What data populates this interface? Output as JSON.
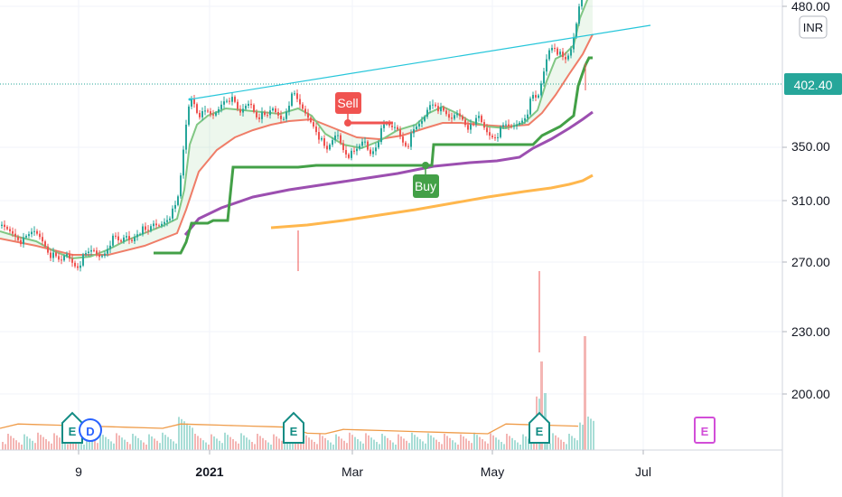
{
  "currency": "INR",
  "last_price": "402.40",
  "chart_data": {
    "type": "candlestick",
    "y_ticks": [
      "480.00",
      "350.00",
      "310.00",
      "270.00",
      "230.00",
      "200.00"
    ],
    "x_ticks": [
      {
        "label": "9",
        "bold": false
      },
      {
        "label": "2021",
        "bold": true
      },
      {
        "label": "Mar",
        "bold": false
      },
      {
        "label": "May",
        "bold": false
      },
      {
        "label": "Jul",
        "bold": false
      }
    ],
    "price_points": [
      [
        0,
        250
      ],
      [
        6,
        247
      ],
      [
        12,
        244
      ],
      [
        18,
        239
      ],
      [
        24,
        232
      ],
      [
        30,
        237
      ],
      [
        36,
        244
      ],
      [
        42,
        240
      ],
      [
        48,
        232
      ],
      [
        54,
        220
      ],
      [
        60,
        214
      ],
      [
        66,
        208
      ],
      [
        72,
        220
      ],
      [
        78,
        212
      ],
      [
        84,
        206
      ],
      [
        90,
        213
      ],
      [
        96,
        218
      ],
      [
        102,
        223
      ],
      [
        108,
        216
      ],
      [
        114,
        220
      ],
      [
        120,
        232
      ],
      [
        126,
        236
      ],
      [
        132,
        229
      ],
      [
        138,
        240
      ],
      [
        144,
        233
      ],
      [
        150,
        244
      ],
      [
        156,
        246
      ],
      [
        162,
        240
      ],
      [
        168,
        252
      ],
      [
        174,
        250
      ],
      [
        180,
        256
      ],
      [
        186,
        262
      ],
      [
        192,
        266
      ],
      [
        196,
        280
      ],
      [
        200,
        312
      ],
      [
        204,
        355
      ],
      [
        208,
        383
      ],
      [
        212,
        395
      ],
      [
        216,
        380
      ],
      [
        222,
        372
      ],
      [
        228,
        375
      ],
      [
        234,
        370
      ],
      [
        240,
        378
      ],
      [
        246,
        390
      ],
      [
        252,
        393
      ],
      [
        258,
        386
      ],
      [
        264,
        372
      ],
      [
        270,
        382
      ],
      [
        276,
        388
      ],
      [
        282,
        374
      ],
      [
        288,
        372
      ],
      [
        294,
        368
      ],
      [
        300,
        380
      ],
      [
        306,
        374
      ],
      [
        312,
        368
      ],
      [
        318,
        386
      ],
      [
        324,
        395
      ],
      [
        330,
        384
      ],
      [
        336,
        376
      ],
      [
        342,
        368
      ],
      [
        348,
        360
      ],
      [
        354,
        345
      ],
      [
        360,
        330
      ],
      [
        366,
        342
      ],
      [
        372,
        354
      ],
      [
        378,
        338
      ],
      [
        384,
        330
      ],
      [
        390,
        328
      ],
      [
        396,
        335
      ],
      [
        402,
        346
      ],
      [
        408,
        330
      ],
      [
        414,
        338
      ],
      [
        420,
        352
      ],
      [
        426,
        362
      ],
      [
        432,
        358
      ],
      [
        438,
        360
      ],
      [
        444,
        346
      ],
      [
        450,
        340
      ],
      [
        456,
        352
      ],
      [
        462,
        360
      ],
      [
        468,
        368
      ],
      [
        474,
        385
      ],
      [
        480,
        388
      ],
      [
        486,
        378
      ],
      [
        492,
        372
      ],
      [
        498,
        366
      ],
      [
        504,
        376
      ],
      [
        510,
        372
      ],
      [
        516,
        362
      ],
      [
        522,
        356
      ],
      [
        528,
        372
      ],
      [
        534,
        360
      ],
      [
        540,
        352
      ],
      [
        546,
        350
      ],
      [
        552,
        354
      ],
      [
        558,
        360
      ],
      [
        564,
        358
      ],
      [
        570,
        362
      ],
      [
        576,
        368
      ],
      [
        582,
        375
      ],
      [
        588,
        392
      ],
      [
        594,
        388
      ],
      [
        600,
        416
      ],
      [
        606,
        445
      ],
      [
        612,
        452
      ],
      [
        618,
        440
      ],
      [
        624,
        430
      ],
      [
        630,
        440
      ],
      [
        636,
        468
      ],
      [
        642,
        508
      ],
      [
        646,
        520
      ],
      [
        650,
        530
      ],
      [
        656,
        540
      ]
    ],
    "ema_fast": [
      [
        0,
        244
      ],
      [
        20,
        238
      ],
      [
        40,
        233
      ],
      [
        60,
        222
      ],
      [
        80,
        214
      ],
      [
        100,
        216
      ],
      [
        120,
        224
      ],
      [
        140,
        234
      ],
      [
        160,
        242
      ],
      [
        180,
        250
      ],
      [
        196,
        258
      ],
      [
        204,
        290
      ],
      [
        210,
        340
      ],
      [
        218,
        362
      ],
      [
        230,
        372
      ],
      [
        250,
        380
      ],
      [
        270,
        378
      ],
      [
        290,
        376
      ],
      [
        310,
        374
      ],
      [
        330,
        380
      ],
      [
        345,
        372
      ],
      [
        360,
        352
      ],
      [
        380,
        340
      ],
      [
        400,
        336
      ],
      [
        420,
        344
      ],
      [
        440,
        356
      ],
      [
        460,
        362
      ],
      [
        475,
        375
      ],
      [
        490,
        382
      ],
      [
        505,
        375
      ],
      [
        520,
        366
      ],
      [
        540,
        360
      ],
      [
        560,
        358
      ],
      [
        580,
        364
      ],
      [
        595,
        378
      ],
      [
        605,
        410
      ],
      [
        615,
        435
      ],
      [
        625,
        440
      ],
      [
        635,
        450
      ],
      [
        642,
        480
      ],
      [
        650,
        500
      ],
      [
        656,
        510
      ]
    ],
    "ema_slow": [
      [
        0,
        236
      ],
      [
        40,
        228
      ],
      [
        80,
        218
      ],
      [
        120,
        218
      ],
      [
        160,
        228
      ],
      [
        196,
        242
      ],
      [
        206,
        268
      ],
      [
        220,
        310
      ],
      [
        240,
        334
      ],
      [
        260,
        348
      ],
      [
        280,
        356
      ],
      [
        300,
        362
      ],
      [
        320,
        366
      ],
      [
        345,
        368
      ],
      [
        370,
        358
      ],
      [
        395,
        348
      ],
      [
        420,
        346
      ],
      [
        445,
        350
      ],
      [
        470,
        358
      ],
      [
        490,
        364
      ],
      [
        510,
        364
      ],
      [
        530,
        362
      ],
      [
        560,
        360
      ],
      [
        585,
        362
      ],
      [
        600,
        375
      ],
      [
        615,
        395
      ],
      [
        630,
        418
      ],
      [
        645,
        440
      ],
      [
        656,
        462
      ]
    ],
    "ma_purple": [
      [
        205,
        240
      ],
      [
        220,
        258
      ],
      [
        245,
        270
      ],
      [
        280,
        282
      ],
      [
        320,
        290
      ],
      [
        360,
        296
      ],
      [
        400,
        302
      ],
      [
        440,
        308
      ],
      [
        480,
        316
      ],
      [
        520,
        320
      ],
      [
        550,
        322
      ],
      [
        575,
        326
      ],
      [
        590,
        336
      ],
      [
        610,
        346
      ],
      [
        630,
        358
      ],
      [
        645,
        368
      ],
      [
        656,
        376
      ]
    ],
    "ma_orange": [
      [
        300,
        248
      ],
      [
        340,
        251
      ],
      [
        380,
        256
      ],
      [
        420,
        262
      ],
      [
        460,
        268
      ],
      [
        500,
        275
      ],
      [
        540,
        282
      ],
      [
        580,
        288
      ],
      [
        610,
        292
      ],
      [
        630,
        296
      ],
      [
        645,
        300
      ],
      [
        656,
        306
      ]
    ],
    "stop_line": [
      [
        170,
        220
      ],
      [
        200,
        220
      ],
      [
        206,
        232
      ],
      [
        212,
        253
      ],
      [
        230,
        253
      ],
      [
        236,
        256
      ],
      [
        252,
        256
      ],
      [
        258,
        315
      ],
      [
        300,
        315
      ],
      [
        330,
        315
      ],
      [
        350,
        317
      ],
      [
        385,
        317
      ],
      [
        408,
        317
      ],
      [
        450,
        317
      ],
      [
        478,
        317
      ],
      [
        480,
        340
      ],
      [
        540,
        340
      ],
      [
        590,
        340
      ],
      [
        600,
        350
      ],
      [
        620,
        360
      ],
      [
        635,
        372
      ],
      [
        640,
        405
      ],
      [
        648,
        428
      ],
      [
        652,
        436
      ],
      [
        656,
        436
      ]
    ],
    "trendline": {
      "from": [
        210,
        390
      ],
      "to": [
        720,
        472
      ]
    },
    "markers": [
      {
        "label": "Sell",
        "color": "#f05350",
        "x": 385,
        "y": 364,
        "dir": "up"
      },
      {
        "label": "Buy",
        "color": "#43a047",
        "x": 471,
        "y": 317,
        "dir": "down"
      }
    ],
    "earnings": [
      {
        "label": "E",
        "x": 80,
        "color": "#138c84"
      },
      {
        "label": "D",
        "x": 100,
        "color": "#2962ff"
      },
      {
        "label": "E",
        "x": 325,
        "color": "#138c84"
      },
      {
        "label": "E",
        "x": 597,
        "color": "#138c84"
      },
      {
        "label": "E",
        "x": 780,
        "color": "#d24ed8"
      }
    ]
  }
}
